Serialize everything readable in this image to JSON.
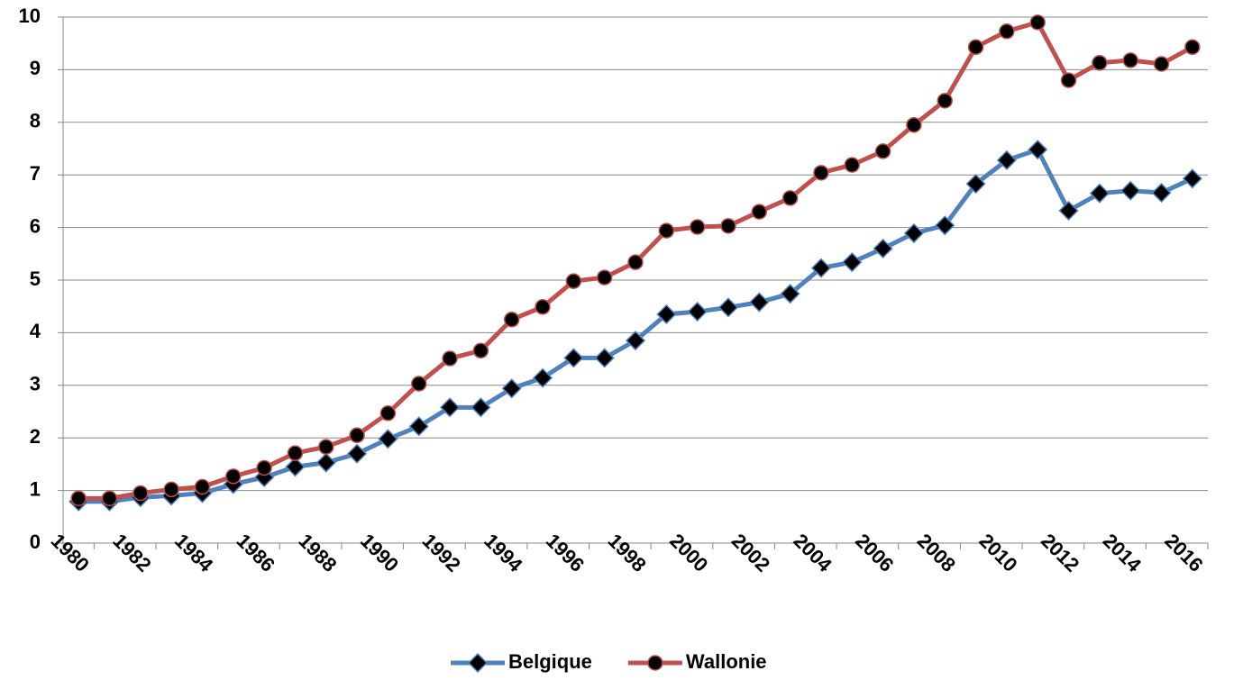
{
  "chart_data": {
    "type": "line",
    "categories": [
      "1980",
      null,
      "1982",
      null,
      "1984",
      null,
      "1986",
      null,
      "1988",
      null,
      "1990",
      null,
      "1992",
      null,
      "1994",
      null,
      "1996",
      null,
      "1998",
      null,
      "2000",
      null,
      "2002",
      null,
      "2004",
      null,
      "2006",
      null,
      "2008",
      null,
      "2010",
      null,
      "2012",
      null,
      "2014",
      null,
      "2016"
    ],
    "series": [
      {
        "name": "Belgique",
        "color": "#4f81bd",
        "marker": "diamond",
        "values": [
          0.79,
          0.79,
          0.87,
          0.9,
          0.95,
          1.12,
          1.25,
          1.45,
          1.53,
          1.7,
          1.98,
          2.22,
          2.58,
          2.58,
          2.94,
          3.14,
          3.52,
          3.52,
          3.85,
          4.35,
          4.4,
          4.48,
          4.58,
          4.74,
          5.23,
          5.34,
          5.6,
          5.89,
          6.04,
          6.83,
          7.28,
          7.48,
          6.32,
          6.65,
          6.7,
          6.66,
          6.93
        ]
      },
      {
        "name": "Wallonie",
        "color": "#c0504d",
        "marker": "circle",
        "values": [
          0.85,
          0.85,
          0.95,
          1.02,
          1.07,
          1.27,
          1.43,
          1.71,
          1.83,
          2.05,
          2.47,
          3.03,
          3.51,
          3.66,
          4.25,
          4.49,
          4.98,
          5.05,
          5.34,
          5.94,
          6.01,
          6.03,
          6.3,
          6.56,
          7.04,
          7.19,
          7.45,
          7.95,
          8.41,
          9.43,
          9.73,
          9.9,
          8.8,
          9.13,
          9.18,
          9.11,
          9.43
        ]
      }
    ],
    "ylim": [
      0,
      10
    ],
    "yticks": [
      0,
      1,
      2,
      3,
      4,
      5,
      6,
      7,
      8,
      9,
      10
    ],
    "grid": true,
    "legend": "bottom"
  }
}
